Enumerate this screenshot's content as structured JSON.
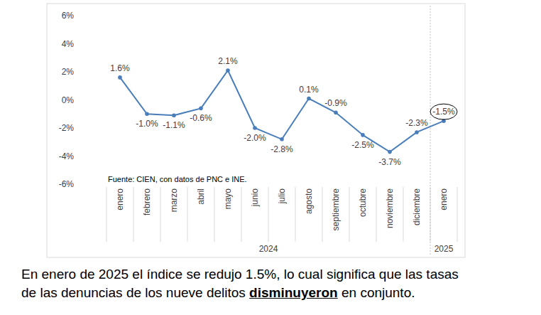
{
  "chart_data": {
    "type": "line",
    "categories": [
      "enero",
      "febrero",
      "marzo",
      "abril",
      "mayo",
      "junio",
      "julio",
      "agosto",
      "septiembre",
      "octubre",
      "noviembre",
      "diciembre",
      "enero"
    ],
    "group_labels": [
      "2024",
      "2025"
    ],
    "values": [
      1.6,
      -1.0,
      -1.1,
      -0.6,
      2.1,
      -2.0,
      -2.8,
      0.1,
      -0.9,
      -2.5,
      -3.7,
      -2.3,
      -1.5
    ],
    "value_labels": [
      "1.6%",
      "-1.0%",
      "-1.1%",
      "-0.6%",
      "2.1%",
      "-2.0%",
      "-2.8%",
      "0.1%",
      "-0.9%",
      "-2.5%",
      "-3.7%",
      "-2.3%",
      "-1.5%"
    ],
    "color": "#4a7ebb",
    "marker": "circle",
    "line_style": "solid",
    "data_labels": true,
    "grid": false,
    "ylim": [
      -6,
      6
    ],
    "yticks": [
      {
        "value": 6,
        "label": "6%"
      },
      {
        "value": 4,
        "label": "4%"
      },
      {
        "value": 2,
        "label": "2%"
      },
      {
        "value": 0,
        "label": "0%"
      },
      {
        "value": -2,
        "label": "-2%"
      },
      {
        "value": -4,
        "label": "-4%"
      },
      {
        "value": -6,
        "label": "-6%"
      }
    ],
    "source": "Fuente: CIEN, con datos de PNC e INE."
  },
  "caption": [
    "En enero de 2025 el índice se redujo 1.5%, lo cual significa que las tasas",
    "de las denuncias de los nueve delitos ",
    "disminuyeron",
    " en conjunto."
  ]
}
